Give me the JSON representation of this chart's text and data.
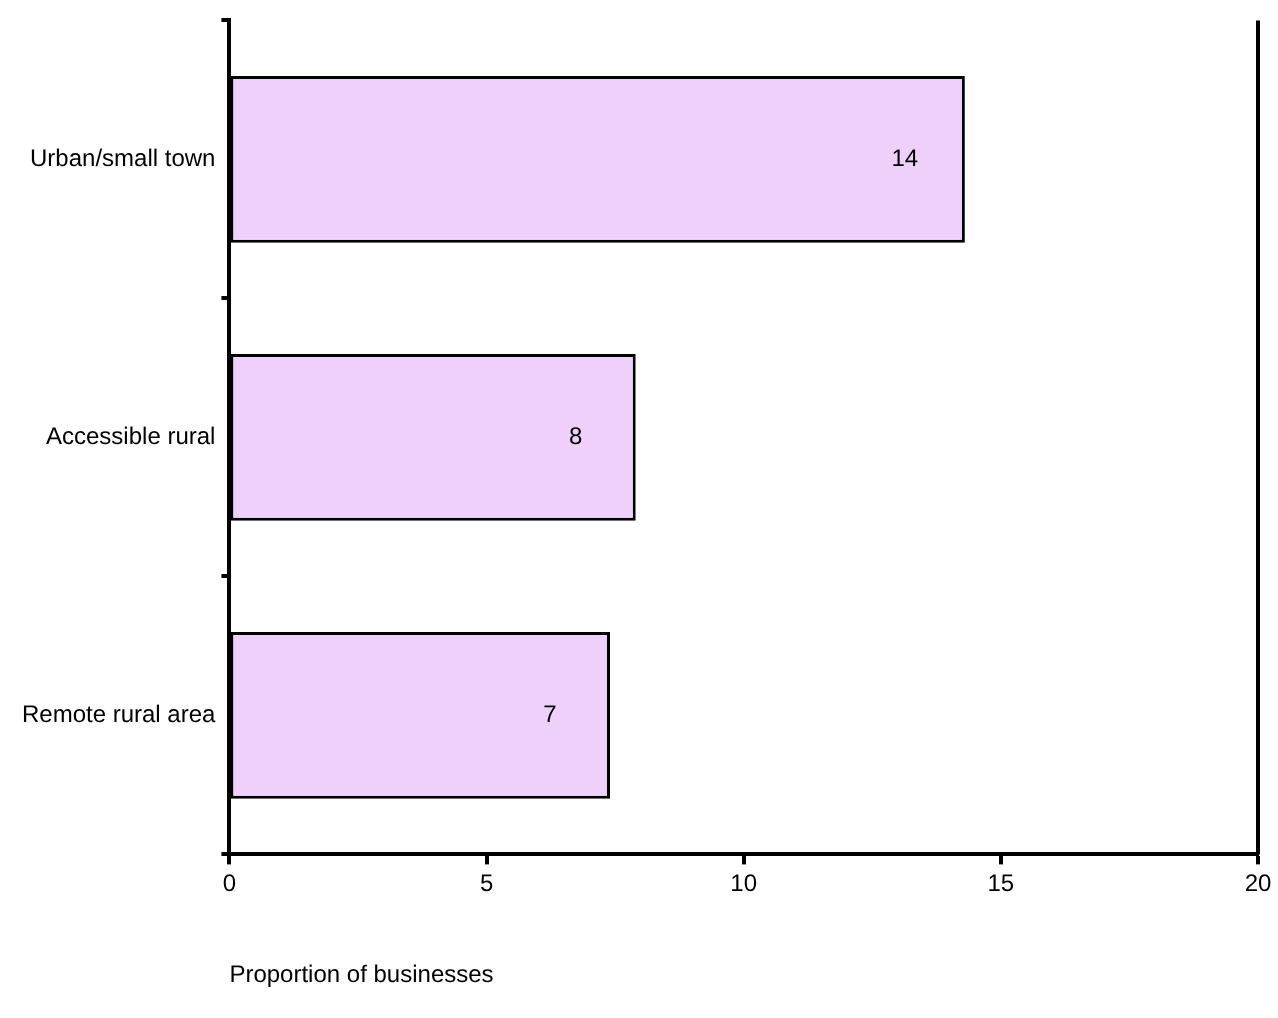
{
  "chart_data": {
    "type": "bar",
    "orientation": "horizontal",
    "categories": [
      "Urban/small town",
      "Accessible rural",
      "Remote rural area"
    ],
    "series": [
      {
        "color": "#eed0fa",
        "values": [
          14.3,
          7.9,
          7.4
        ],
        "value_labels": [
          "14",
          "8",
          "7"
        ]
      }
    ],
    "xlabel": "Proportion of businesses",
    "xlim": [
      0,
      20
    ],
    "xticks": [
      0,
      5,
      10,
      15,
      20
    ],
    "grid": false,
    "legend": false
  }
}
